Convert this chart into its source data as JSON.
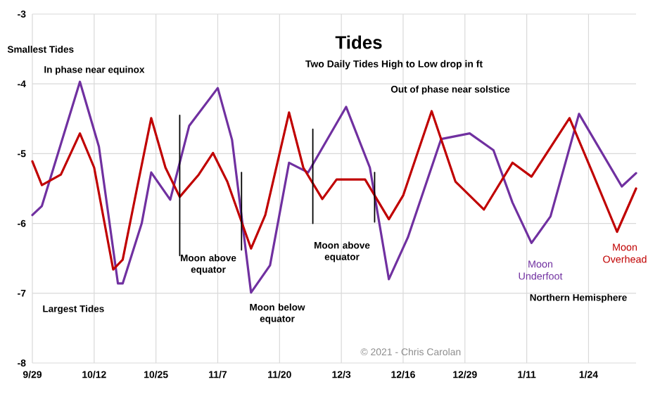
{
  "chart_data": {
    "type": "line",
    "title": "Tides",
    "subtitle": "Two Daily Tides High to Low drop in ft",
    "annotations": [
      "Smallest Tides",
      "In phase near equinox",
      "Out of phase near solstice",
      "Largest Tides",
      "Moon above equator",
      "Moon below equator",
      "Moon above equator",
      "Northern Hemisphere",
      "© 2021 - Chris Carolan"
    ],
    "xlim": [
      "2021-09-29",
      "2022-02-03"
    ],
    "ylim": [
      -8,
      -3
    ],
    "xticks": [
      {
        "value": "2021-09-29",
        "label": "9/29"
      },
      {
        "value": "2021-10-12",
        "label": "10/12"
      },
      {
        "value": "2021-10-25",
        "label": "10/25"
      },
      {
        "value": "2021-11-07",
        "label": "11/7"
      },
      {
        "value": "2021-11-20",
        "label": "11/20"
      },
      {
        "value": "2021-12-03",
        "label": "12/3"
      },
      {
        "value": "2021-12-16",
        "label": "12/16"
      },
      {
        "value": "2021-12-29",
        "label": "12/29"
      },
      {
        "value": "2022-01-11",
        "label": "1/11"
      },
      {
        "value": "2022-01-24",
        "label": "1/24"
      }
    ],
    "yticks": [
      -8,
      -7,
      -6,
      -5,
      -4,
      -3
    ],
    "grid": true,
    "series": [
      {
        "name": "Moon Underfoot",
        "color": "#7030a0",
        "x": [
          "2021-09-29",
          "2021-10-01",
          "2021-10-09",
          "2021-10-13",
          "2021-10-17",
          "2021-10-18",
          "2021-10-22",
          "2021-10-24",
          "2021-10-28",
          "2021-11-01",
          "2021-11-07",
          "2021-11-10",
          "2021-11-14",
          "2021-11-18",
          "2021-11-22",
          "2021-11-26",
          "2021-12-04",
          "2021-12-09",
          "2021-12-13",
          "2021-12-17",
          "2021-12-24",
          "2021-12-30",
          "2022-01-04",
          "2022-01-08",
          "2022-01-12",
          "2022-01-16",
          "2022-01-22",
          "2022-01-31",
          "2022-02-03"
        ],
        "values": [
          -5.88,
          -5.75,
          -3.97,
          -4.9,
          -6.86,
          -6.86,
          -6.0,
          -5.27,
          -5.66,
          -4.6,
          -4.06,
          -4.8,
          -6.99,
          -6.6,
          -5.13,
          -5.27,
          -4.33,
          -5.2,
          -6.8,
          -6.2,
          -4.79,
          -4.71,
          -4.95,
          -5.7,
          -6.28,
          -5.9,
          -4.43,
          -5.47,
          -5.28
        ]
      },
      {
        "name": "Moon Overhead",
        "color": "#c00000",
        "x": [
          "2021-09-29",
          "2021-10-01",
          "2021-10-05",
          "2021-10-09",
          "2021-10-12",
          "2021-10-16",
          "2021-10-18",
          "2021-10-21",
          "2021-10-24",
          "2021-10-27",
          "2021-10-30",
          "2021-11-03",
          "2021-11-06",
          "2021-11-09",
          "2021-11-14",
          "2021-11-17",
          "2021-11-22",
          "2021-11-25",
          "2021-11-29",
          "2021-12-02",
          "2021-12-08",
          "2021-12-13",
          "2021-12-16",
          "2021-12-22",
          "2021-12-27",
          "2022-01-02",
          "2022-01-08",
          "2022-01-12",
          "2022-01-20",
          "2022-01-25",
          "2022-01-30",
          "2022-02-03"
        ],
        "values": [
          -5.11,
          -5.45,
          -5.3,
          -4.71,
          -5.2,
          -6.66,
          -6.52,
          -5.5,
          -4.49,
          -5.2,
          -5.62,
          -5.3,
          -4.99,
          -5.4,
          -6.36,
          -5.88,
          -4.41,
          -5.2,
          -5.65,
          -5.37,
          -5.37,
          -5.94,
          -5.6,
          -4.39,
          -5.4,
          -5.8,
          -5.13,
          -5.33,
          -4.49,
          -5.3,
          -6.12,
          -5.5
        ]
      },
      {
        "color": "#000000",
        "x": [
          "2021-10-30",
          "2021-10-30"
        ],
        "values": [
          -4.45,
          -6.46
        ]
      },
      {
        "color": "#000000",
        "x": [
          "2021-11-12",
          "2021-11-12"
        ],
        "values": [
          -5.27,
          -6.38
        ]
      },
      {
        "color": "#000000",
        "x": [
          "2021-11-27",
          "2021-11-27"
        ],
        "values": [
          -4.65,
          -6.0
        ]
      },
      {
        "color": "#000000",
        "x": [
          "2021-12-10",
          "2021-12-10"
        ],
        "values": [
          -5.27,
          -5.98
        ]
      }
    ]
  }
}
